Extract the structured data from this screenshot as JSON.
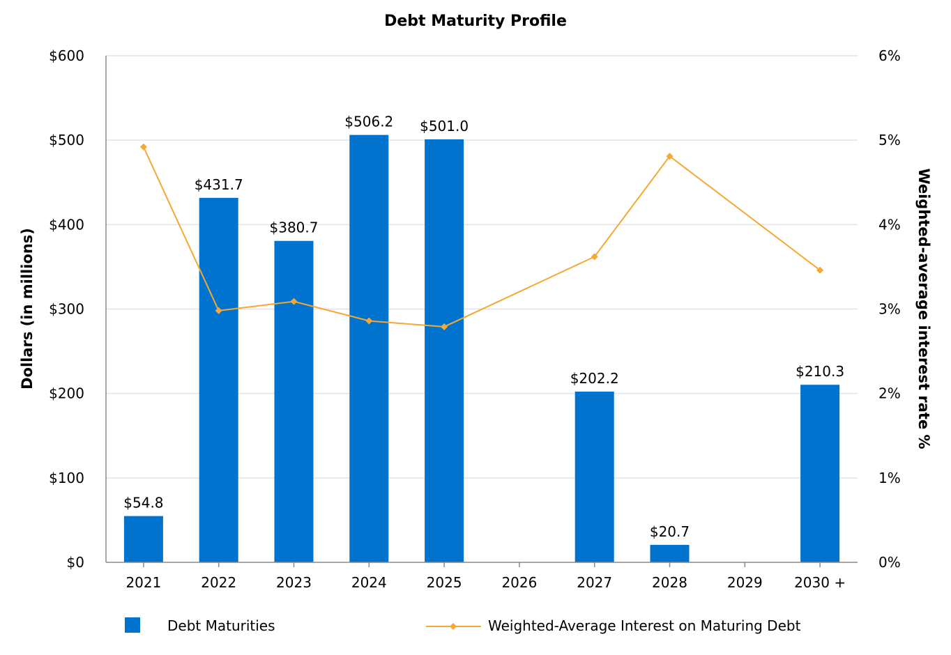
{
  "chart_data": {
    "type": "bar",
    "title": "Debt Maturity Profile",
    "categories": [
      "2021",
      "2022",
      "2023",
      "2024",
      "2025",
      "2026",
      "2027",
      "2028",
      "2029",
      "2030 +"
    ],
    "series": [
      {
        "name": "Debt Maturities",
        "type": "bar",
        "axis": "left",
        "color": "#0073cf",
        "values": [
          54.8,
          431.7,
          380.7,
          506.2,
          501.0,
          null,
          202.2,
          20.7,
          null,
          210.3
        ],
        "labels": [
          "$54.8",
          "$431.7",
          "$380.7",
          "$506.2",
          "$501.0",
          "",
          "$202.2",
          "$20.7",
          "",
          "$210.3"
        ]
      },
      {
        "name": "Weighted-Average Interest on Maturing Debt",
        "type": "line",
        "axis": "right",
        "color": "#f5a833",
        "marker": "diamond",
        "values": [
          4.92,
          2.98,
          3.09,
          2.86,
          2.79,
          null,
          3.62,
          4.81,
          null,
          3.46
        ]
      }
    ],
    "ylabel": "Dollars (in millions)",
    "ylim": [
      0,
      600
    ],
    "yticks": [
      "$0",
      "$100",
      "$200",
      "$300",
      "$400",
      "$500",
      "$600"
    ],
    "y2label": "Weighted-average interest rate %",
    "y2lim": [
      0,
      6
    ],
    "y2ticks": [
      "0%",
      "1%",
      "2%",
      "3%",
      "4%",
      "5%",
      "6%"
    ],
    "grid": "horizontal",
    "legend_position": "bottom"
  }
}
